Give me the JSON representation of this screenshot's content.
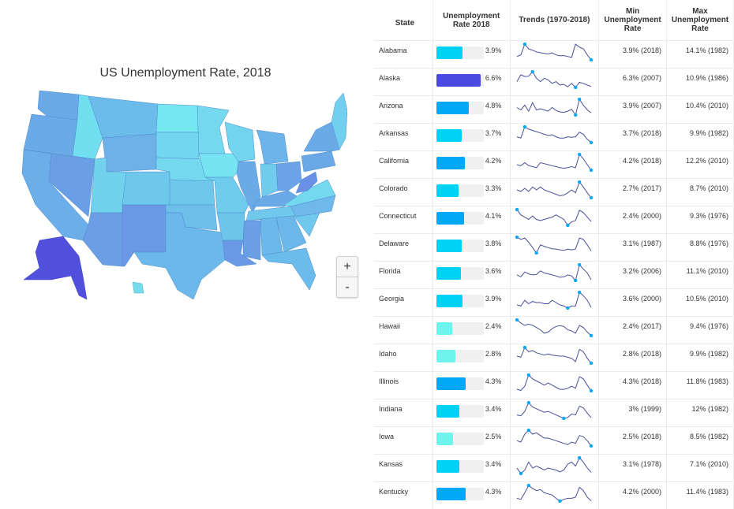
{
  "map": {
    "title": "US Unemployment Rate, 2018",
    "zoom_in_label": "+",
    "zoom_out_label": "-",
    "color_scale": [
      "#6ef3ed",
      "#00d2f6",
      "#00a8f7",
      "#4a4ae0"
    ]
  },
  "table": {
    "headers": {
      "state": "State",
      "rate_line1": "Unemployment",
      "rate_line2": "Rate 2018",
      "trends": "Trends (1970-2018)",
      "min_line1": "Min",
      "min_line2": "Unemployment",
      "min_line3": "Rate",
      "max_line1": "Max",
      "max_line2": "Unemployment",
      "max_line3": "Rate"
    },
    "rows": [
      {
        "state": "Alabama",
        "rate": 3.9,
        "rate_label": "3.9%",
        "min": "3.9% (2018)",
        "max": "14.1% (1982)"
      },
      {
        "state": "Alaska",
        "rate": 6.6,
        "rate_label": "6.6%",
        "min": "6.3% (2007)",
        "max": "10.9% (1986)"
      },
      {
        "state": "Arizona",
        "rate": 4.8,
        "rate_label": "4.8%",
        "min": "3.9% (2007)",
        "max": "10.4% (2010)"
      },
      {
        "state": "Arkansas",
        "rate": 3.7,
        "rate_label": "3.7%",
        "min": "3.7% (2018)",
        "max": "9.9% (1982)"
      },
      {
        "state": "California",
        "rate": 4.2,
        "rate_label": "4.2%",
        "min": "4.2% (2018)",
        "max": "12.2% (2010)"
      },
      {
        "state": "Colorado",
        "rate": 3.3,
        "rate_label": "3.3%",
        "min": "2.7% (2017)",
        "max": "8.7% (2010)"
      },
      {
        "state": "Connecticut",
        "rate": 4.1,
        "rate_label": "4.1%",
        "min": "2.4% (2000)",
        "max": "9.3% (1976)"
      },
      {
        "state": "Delaware",
        "rate": 3.8,
        "rate_label": "3.8%",
        "min": "3.1% (1987)",
        "max": "8.8% (1976)"
      },
      {
        "state": "Florida",
        "rate": 3.6,
        "rate_label": "3.6%",
        "min": "3.2% (2006)",
        "max": "11.1% (2010)"
      },
      {
        "state": "Georgia",
        "rate": 3.9,
        "rate_label": "3.9%",
        "min": "3.6% (2000)",
        "max": "10.5% (2010)"
      },
      {
        "state": "Hawaii",
        "rate": 2.4,
        "rate_label": "2.4%",
        "min": "2.4% (2017)",
        "max": "9.4% (1976)"
      },
      {
        "state": "Idaho",
        "rate": 2.8,
        "rate_label": "2.8%",
        "min": "2.8% (2018)",
        "max": "9.9% (1982)"
      },
      {
        "state": "Illinois",
        "rate": 4.3,
        "rate_label": "4.3%",
        "min": "4.3% (2018)",
        "max": "11.8% (1983)"
      },
      {
        "state": "Indiana",
        "rate": 3.4,
        "rate_label": "3.4%",
        "min": "3% (1999)",
        "max": "12% (1982)"
      },
      {
        "state": "Iowa",
        "rate": 2.5,
        "rate_label": "2.5%",
        "min": "2.5% (2018)",
        "max": "8.5% (1982)"
      },
      {
        "state": "Kansas",
        "rate": 3.4,
        "rate_label": "3.4%",
        "min": "3.1% (1978)",
        "max": "7.1% (2010)"
      },
      {
        "state": "Kentucky",
        "rate": 4.3,
        "rate_label": "4.3%",
        "min": "4.2% (2000)",
        "max": "11.4% (1983)"
      }
    ]
  },
  "chart_data": {
    "type": "table",
    "title": "US Unemployment Rate, 2018",
    "columns": [
      "State",
      "Unemployment Rate 2018",
      "Trends (1970-2018)",
      "Min Unemployment Rate",
      "Max Unemployment Rate"
    ],
    "bar_max": 7,
    "spark_years": [
      1970,
      2018
    ],
    "sparklines": {
      "Alabama": [
        5,
        5.5,
        9,
        7.5,
        7,
        6.5,
        6.2,
        6,
        5.8,
        6.2,
        5.5,
        5.2,
        5.3,
        5,
        4.7,
        9,
        8,
        7.5,
        5.5,
        3.9
      ],
      "Alaska": [
        8,
        10,
        9.5,
        9.6,
        10.9,
        9,
        8,
        9,
        8.5,
        7.5,
        8,
        7,
        7.2,
        6.5,
        7.5,
        6.3,
        7.8,
        7.5,
        7,
        6.6
      ],
      "Arizona": [
        7,
        6,
        8,
        5.5,
        9,
        6,
        6.5,
        6,
        5.5,
        7,
        5.8,
        5.2,
        5,
        5.5,
        6.2,
        3.9,
        10.4,
        8,
        6,
        4.8
      ],
      "Arkansas": [
        6,
        5.5,
        9.9,
        9,
        8.5,
        8,
        7.5,
        7,
        6.5,
        6.8,
        6,
        5.5,
        5.5,
        6,
        5.8,
        6,
        7.8,
        7,
        5,
        3.7
      ],
      "California": [
        7,
        6.5,
        8,
        6.5,
        6,
        5.5,
        8,
        7.5,
        7,
        6.5,
        6,
        5.5,
        5.2,
        5.5,
        6,
        5.5,
        12.2,
        10,
        7,
        4.2
      ],
      "Colorado": [
        6,
        5.5,
        6.5,
        5.5,
        7,
        6,
        7,
        6,
        5.5,
        5,
        4.5,
        4,
        4.2,
        5,
        6,
        5,
        8.7,
        7,
        5,
        3.3
      ],
      "Connecticut": [
        9.3,
        7,
        6,
        5,
        6.5,
        5,
        4.5,
        5,
        5.5,
        6,
        7,
        6,
        5,
        2.4,
        4,
        4.5,
        9,
        8,
        6,
        4.1
      ],
      "Delaware": [
        8.8,
        8,
        8.5,
        7,
        5,
        3.1,
        6,
        5.5,
        5,
        4.6,
        4.5,
        4.2,
        4,
        4.5,
        4.2,
        4.5,
        8.5,
        8,
        6,
        3.8
      ],
      "Florida": [
        6,
        5,
        7.5,
        6.5,
        6,
        6.2,
        8,
        7,
        6.5,
        6,
        5.5,
        4.8,
        5,
        6,
        5.5,
        3.2,
        11.1,
        9,
        7,
        3.6
      ],
      "Georgia": [
        5,
        4.5,
        7,
        5.5,
        6.5,
        6,
        6,
        5.5,
        5.5,
        7,
        6,
        5,
        4.5,
        3.6,
        4.5,
        4.5,
        10.5,
        9,
        7,
        3.9
      ],
      "Hawaii": [
        9.4,
        8,
        7,
        7.5,
        7,
        6,
        5,
        3.5,
        4,
        5.5,
        6.5,
        6.8,
        6.5,
        5,
        4.5,
        3.5,
        7,
        6,
        4,
        2.4
      ],
      "Idaho": [
        6,
        5.5,
        9.9,
        8,
        8.5,
        7.5,
        7,
        6.5,
        7,
        6.5,
        6.2,
        6,
        6,
        5.5,
        5,
        3.5,
        9,
        8,
        5,
        2.8
      ],
      "Illinois": [
        5,
        4.5,
        6.5,
        11.8,
        10,
        9,
        8,
        7,
        8,
        7,
        6,
        5,
        5,
        5.5,
        6.5,
        5.5,
        11,
        10,
        7,
        4.3
      ],
      "Indiana": [
        5,
        4.5,
        7,
        12,
        9.5,
        8.5,
        7.5,
        6.5,
        7,
        6,
        5,
        4,
        3,
        3.5,
        5.5,
        5,
        10,
        9,
        6,
        3.4
      ],
      "Iowa": [
        4.5,
        4,
        7,
        8.5,
        7,
        7.5,
        6.5,
        5.5,
        5.5,
        5,
        4.5,
        4,
        3.5,
        3,
        4,
        3.5,
        6.5,
        6,
        4.5,
        2.5
      ],
      "Kansas": [
        4.5,
        3.1,
        4,
        6,
        4.5,
        5,
        4.5,
        4,
        4.5,
        4.2,
        4,
        3.5,
        4,
        5.5,
        6,
        5,
        7.1,
        6,
        4.5,
        3.4
      ],
      "Kentucky": [
        5.5,
        5,
        8,
        11.4,
        10,
        9,
        9.5,
        8,
        7.5,
        7,
        5.5,
        4.2,
        5,
        5.5,
        5.5,
        6,
        10.5,
        9,
        6,
        4.3
      ]
    }
  }
}
